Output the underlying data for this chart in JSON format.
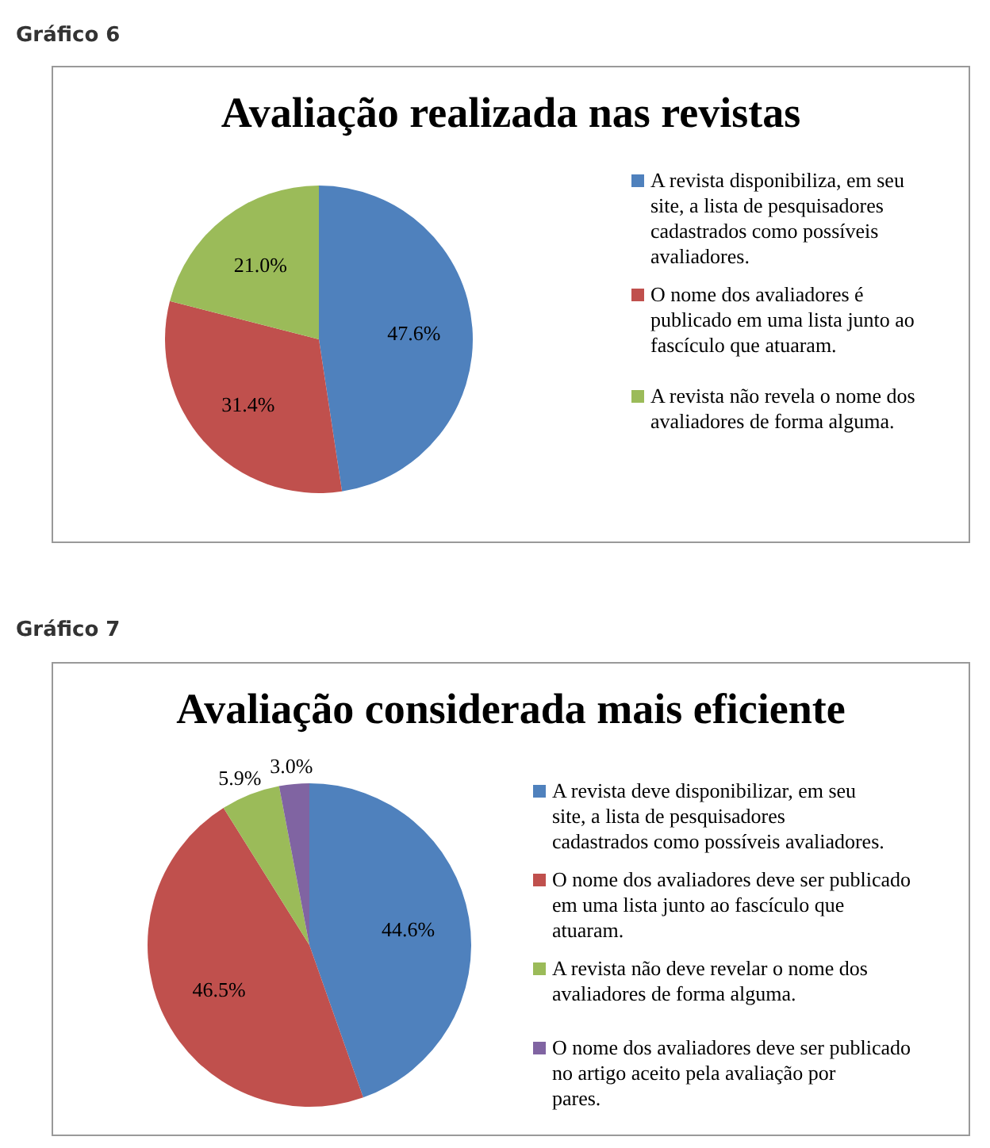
{
  "chart_data": [
    {
      "type": "pie",
      "title": "Avaliação realizada nas revistas",
      "annotations": [
        "Gráfico 6"
      ],
      "categories": [
        "A revista disponibiliza, em seu site, a lista de pesquisadores cadastrados como possíveis avaliadores.",
        "O nome dos avaliadores é publicado em uma lista junto ao fascículo que atuaram.",
        "A revista não revela o nome dos avaliadores de forma alguma."
      ],
      "values": [
        47.6,
        31.4,
        21.0
      ],
      "colors": [
        "#4f81bd",
        "#c0504d",
        "#9bbb59"
      ],
      "value_labels": [
        "47.6%",
        "31.4%",
        "21.0%"
      ],
      "legend": "right"
    },
    {
      "type": "pie",
      "title": "Avaliação considerada mais eficiente",
      "annotations": [
        "Gráfico 7"
      ],
      "categories": [
        "A revista deve disponibilizar, em seu site, a lista de pesquisadores cadastrados como possíveis avaliadores.",
        "O nome dos avaliadores deve ser publicado em uma lista junto ao fascículo que atuaram.",
        "A revista não deve revelar o nome dos avaliadores de forma alguma.",
        "O nome dos avaliadores deve ser publicado no artigo aceito pela avaliação por pares."
      ],
      "values": [
        44.6,
        46.5,
        5.9,
        3.0
      ],
      "colors": [
        "#4f81bd",
        "#c0504d",
        "#9bbb59",
        "#8064a2"
      ],
      "value_labels": [
        "44.6%",
        "46.5%",
        "5.9%",
        "3.0%"
      ],
      "legend": "right"
    }
  ]
}
